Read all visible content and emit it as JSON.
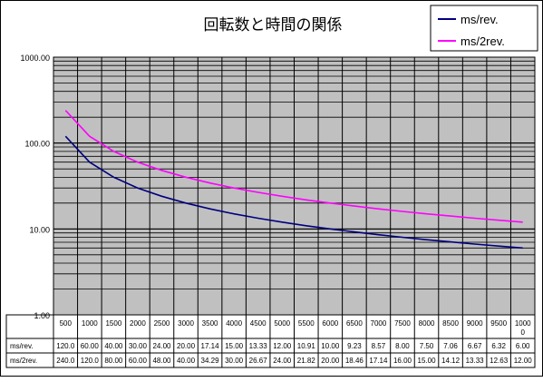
{
  "chart_data": {
    "type": "line",
    "title": "回転数と時間の関係",
    "y_scale": "log",
    "ylim": [
      1,
      1000
    ],
    "grid": true,
    "legend_position": "top-right",
    "yticks": [
      "1000.00",
      "100.00",
      "10.00",
      "1.00"
    ],
    "categories": [
      500,
      1000,
      1500,
      2000,
      2500,
      3000,
      3500,
      4000,
      4500,
      5000,
      5500,
      6000,
      6500,
      7000,
      7500,
      8000,
      8500,
      9000,
      9500,
      10000
    ],
    "category_labels": [
      "500",
      "1000",
      "1500",
      "2000",
      "2500",
      "3000",
      "3500",
      "4000",
      "4500",
      "5000",
      "5500",
      "6000",
      "6500",
      "7000",
      "7500",
      "8000",
      "8500",
      "9000",
      "9500",
      "1000\n0"
    ],
    "series": [
      {
        "name": "ms/rev.",
        "color": "#000080",
        "values": [
          120,
          60,
          40,
          30,
          24,
          20,
          17.14,
          15,
          13.33,
          12,
          10.91,
          10,
          9.23,
          8.57,
          8,
          7.5,
          7.06,
          6.67,
          6.32,
          6
        ],
        "labels": [
          "120.0",
          "60.00",
          "40.00",
          "30.00",
          "24.00",
          "20.00",
          "17.14",
          "15.00",
          "13.33",
          "12.00",
          "10.91",
          "10.00",
          "9.23",
          "8.57",
          "8.00",
          "7.50",
          "7.06",
          "6.67",
          "6.32",
          "6.00"
        ]
      },
      {
        "name": "ms/2rev.",
        "color": "#ff00ff",
        "values": [
          240,
          120,
          80,
          60,
          48,
          40,
          34.29,
          30,
          26.67,
          24,
          21.82,
          20,
          18.46,
          17.14,
          16,
          15,
          14.12,
          13.33,
          12.63,
          12
        ],
        "labels": [
          "240.0",
          "120.0",
          "80.00",
          "60.00",
          "48.00",
          "40.00",
          "34.29",
          "30.00",
          "26.67",
          "24.00",
          "21.82",
          "20.00",
          "18.46",
          "17.14",
          "16.00",
          "15.00",
          "14.12",
          "13.33",
          "12.63",
          "12.00"
        ]
      }
    ],
    "plot_bg": "#c0c0c0"
  }
}
